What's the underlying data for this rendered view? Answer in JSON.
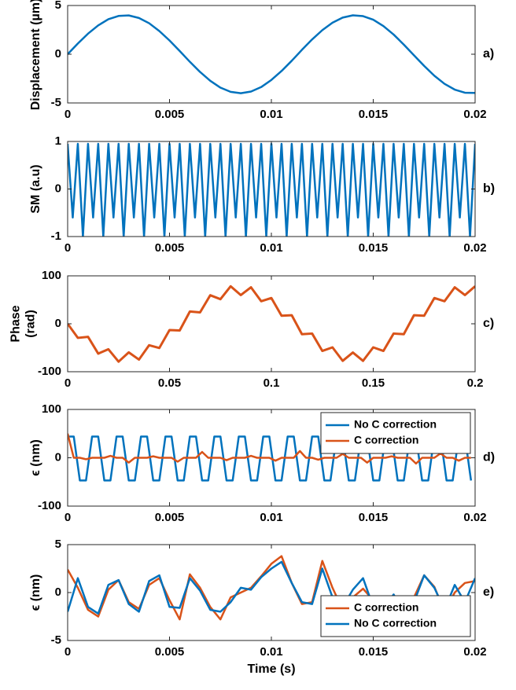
{
  "chart_data": [
    {
      "type": "line",
      "ylabel": "Displacement (µm)",
      "panel_label": "a)",
      "color": "#0072bd",
      "x": [
        0,
        0.0005,
        0.001,
        0.0015,
        0.002,
        0.0025,
        0.003,
        0.0035,
        0.004,
        0.0045,
        0.005,
        0.0055,
        0.006,
        0.0065,
        0.007,
        0.0075,
        0.008,
        0.0085,
        0.009,
        0.0095,
        0.01,
        0.0105,
        0.011,
        0.0115,
        0.012,
        0.0125,
        0.013,
        0.0135,
        0.014,
        0.0145,
        0.015,
        0.0155,
        0.016,
        0.0165,
        0.017,
        0.0175,
        0.018,
        0.0185,
        0.019,
        0.0195,
        0.02
      ],
      "values": [
        0,
        1.1,
        2.11,
        2.96,
        3.59,
        3.93,
        3.98,
        3.72,
        3.18,
        2.38,
        1.41,
        0.33,
        -0.78,
        -1.82,
        -2.73,
        -3.43,
        -3.86,
        -4.0,
        -3.83,
        -3.37,
        -2.64,
        -1.72,
        -0.67,
        0.45,
        1.52,
        2.47,
        3.24,
        3.76,
        3.99,
        3.91,
        3.54,
        2.89,
        2.02,
        0.99,
        -0.11,
        -1.2,
        -2.21,
        -3.04,
        -3.63,
        -3.95,
        -3.97
      ],
      "xlim": [
        0,
        0.02
      ],
      "xticks": [
        0,
        0.005,
        0.01,
        0.015,
        0.02
      ],
      "ylim": [
        -5,
        5
      ],
      "yticks": [
        -5,
        0,
        5
      ]
    },
    {
      "type": "line",
      "ylabel": "SM (a.u)",
      "panel_label": "b)",
      "color": "#0072bd",
      "x": [
        0,
        0.00025,
        0.0005,
        0.00075,
        0.001,
        0.00125,
        0.0015,
        0.00175,
        0.002,
        0.00225,
        0.0025,
        0.00275,
        0.003,
        0.00325,
        0.0035,
        0.00375,
        0.004,
        0.00425,
        0.0045,
        0.00475,
        0.005,
        0.00525,
        0.0055,
        0.00575,
        0.006,
        0.00625,
        0.0065,
        0.00675,
        0.007,
        0.00725,
        0.0075,
        0.00775,
        0.008,
        0.00825,
        0.0085,
        0.00875,
        0.009,
        0.00925,
        0.0095,
        0.00975,
        0.01,
        0.01025,
        0.0105,
        0.01075,
        0.011,
        0.01125,
        0.0115,
        0.01175,
        0.012,
        0.01225,
        0.0125,
        0.01275,
        0.013,
        0.01325,
        0.0135,
        0.01375,
        0.014,
        0.01425,
        0.0145,
        0.01475,
        0.015,
        0.01525,
        0.0155,
        0.01575,
        0.016,
        0.01625,
        0.0165,
        0.01675,
        0.017,
        0.01725,
        0.0175,
        0.01775,
        0.018,
        0.01825,
        0.0185,
        0.01875,
        0.019,
        0.01925,
        0.0195,
        0.01975,
        0.02
      ],
      "values": [
        0.95,
        -0.6,
        0.95,
        -1,
        0.95,
        -0.6,
        0.95,
        -1,
        0.95,
        -0.6,
        0.95,
        -1,
        0.95,
        -0.6,
        0.95,
        -1,
        0.95,
        -0.6,
        0.95,
        -1,
        0.95,
        -0.6,
        0.95,
        -1,
        0.95,
        -0.6,
        0.95,
        -1,
        0.95,
        -0.6,
        0.95,
        -1,
        0.95,
        -0.6,
        0.95,
        -1,
        0.95,
        -0.6,
        0.95,
        -1,
        0.95,
        -0.6,
        0.95,
        -1,
        0.95,
        -0.6,
        0.95,
        -1,
        0.95,
        -0.6,
        0.95,
        -1,
        0.95,
        -0.6,
        0.95,
        -1,
        0.95,
        -0.6,
        0.95,
        -1,
        0.95,
        -0.6,
        0.95,
        -1,
        0.95,
        -0.6,
        0.95,
        -1,
        0.95,
        -0.6,
        0.95,
        -1,
        0.95,
        -0.6,
        0.95,
        -1,
        0.95,
        -0.6,
        0.95,
        -1,
        0.95
      ],
      "xlim": [
        0,
        0.02
      ],
      "xticks": [
        0,
        0.005,
        0.01,
        0.015,
        0.02
      ],
      "ylim": [
        -1,
        1
      ],
      "yticks": [
        -1,
        0,
        1
      ]
    },
    {
      "type": "line",
      "ylabel": [
        "Phase",
        "(rad)"
      ],
      "panel_label": "c)",
      "color": "#d95319",
      "x": [
        0,
        0.005,
        0.01,
        0.015,
        0.02,
        0.025,
        0.03,
        0.035,
        0.04,
        0.045,
        0.05,
        0.055,
        0.06,
        0.065,
        0.07,
        0.075,
        0.08,
        0.085,
        0.09,
        0.095,
        0.1,
        0.105,
        0.11,
        0.115,
        0.12,
        0.125,
        0.13,
        0.135,
        0.14,
        0.145,
        0.15,
        0.155,
        0.16,
        0.165,
        0.17,
        0.175,
        0.18,
        0.185,
        0.19,
        0.195,
        0.2
      ],
      "values": [
        0,
        -29.4,
        -27.2,
        -62.2,
        -53.1,
        -79.0,
        -59.6,
        -74.7,
        -44.7,
        -50.5,
        -13.1,
        -13.9,
        25.6,
        23.8,
        59.5,
        51.3,
        78.2,
        59.9,
        76.1,
        47.1,
        53.7,
        16.8,
        17.8,
        -21.7,
        -20.4,
        -56.6,
        -49.2,
        -77.3,
        -60,
        -77.3,
        -49.2,
        -56.6,
        -20.4,
        -21.7,
        17.8,
        16.8,
        53.7,
        47.1,
        76.1,
        59.9,
        78.2
      ],
      "xlim": [
        0,
        0.2
      ],
      "xticks": [
        0,
        0.05,
        0.1,
        0.15,
        0.2
      ],
      "ylim": [
        -100,
        100
      ],
      "yticks": [
        -100,
        0,
        100
      ]
    },
    {
      "type": "line",
      "ylabel": "ϵ (nm)",
      "panel_label": "d)",
      "legend": "northeast",
      "x": [
        0,
        0.0003,
        0.0006,
        0.0009,
        0.0012,
        0.0015,
        0.0018,
        0.0021,
        0.0024,
        0.0027,
        0.003,
        0.0033,
        0.0036,
        0.0039,
        0.0042,
        0.0045,
        0.0048,
        0.0051,
        0.0054,
        0.0057,
        0.006,
        0.0063,
        0.0066,
        0.0069,
        0.0072,
        0.0075,
        0.0078,
        0.0081,
        0.0084,
        0.0087,
        0.009,
        0.0093,
        0.0096,
        0.0099,
        0.0102,
        0.0105,
        0.0108,
        0.0111,
        0.0114,
        0.0117,
        0.012,
        0.0123,
        0.0126,
        0.0129,
        0.0132,
        0.0135,
        0.0138,
        0.0141,
        0.0144,
        0.0147,
        0.015,
        0.0153,
        0.0156,
        0.0159,
        0.0162,
        0.0165,
        0.0168,
        0.0171,
        0.0174,
        0.0177,
        0.018,
        0.0183,
        0.0186,
        0.0189,
        0.0192,
        0.0195,
        0.0198
      ],
      "series": [
        {
          "name": "No C correction",
          "color": "#0072bd",
          "values": [
            44,
            44,
            -47,
            -47,
            44,
            44,
            -47,
            -47,
            44,
            44,
            -47,
            -47,
            44,
            44,
            -47,
            -47,
            44,
            44,
            -47,
            -47,
            44,
            44,
            -47,
            -47,
            44,
            44,
            -47,
            -47,
            44,
            44,
            -47,
            -47,
            44,
            44,
            -47,
            -47,
            44,
            44,
            -47,
            -47,
            44,
            44,
            -47,
            -47,
            44,
            44,
            -47,
            -47,
            44,
            44,
            -47,
            -47,
            44,
            44,
            -47,
            -47,
            44,
            44,
            -47,
            -47,
            44,
            44,
            -47,
            -47,
            44,
            44,
            -47
          ]
        },
        {
          "name": "C correction",
          "color": "#d95319",
          "values": [
            50,
            0,
            0,
            -3,
            0,
            0,
            0,
            4,
            0,
            0,
            -10,
            0,
            0,
            0,
            3,
            0,
            0,
            0,
            -8,
            0,
            0,
            0,
            12,
            0,
            0,
            0,
            -5,
            0,
            0,
            0,
            4,
            0,
            0,
            0,
            -6,
            0,
            0,
            0,
            14,
            0,
            0,
            -4,
            0,
            0,
            0,
            8,
            0,
            0,
            0,
            -10,
            0,
            0,
            0,
            3,
            0,
            0,
            0,
            -12,
            0,
            0,
            0,
            9,
            0,
            0,
            -6,
            0,
            0
          ]
        }
      ],
      "xlim": [
        0,
        0.02
      ],
      "xticks": [
        0,
        0.005,
        0.01,
        0.015,
        0.02
      ],
      "ylim": [
        -100,
        100
      ],
      "yticks": [
        -100,
        0,
        100
      ]
    },
    {
      "type": "line",
      "ylabel": "ϵ (nm)",
      "xlabel": "Time (s)",
      "panel_label": "e)",
      "legend": "southeast",
      "x": [
        0,
        0.0005,
        0.001,
        0.0015,
        0.002,
        0.0025,
        0.003,
        0.0035,
        0.004,
        0.0045,
        0.005,
        0.0055,
        0.006,
        0.0065,
        0.007,
        0.0075,
        0.008,
        0.0085,
        0.009,
        0.0095,
        0.01,
        0.0105,
        0.011,
        0.0115,
        0.012,
        0.0125,
        0.013,
        0.0135,
        0.014,
        0.0145,
        0.015,
        0.0155,
        0.016,
        0.0165,
        0.017,
        0.0175,
        0.018,
        0.0185,
        0.019,
        0.0195,
        0.02
      ],
      "series": [
        {
          "name": "C correction",
          "color": "#d95319",
          "values": [
            2.4,
            0.5,
            -1.8,
            -2.5,
            0.3,
            1.3,
            -1.0,
            -1.7,
            0.8,
            1.5,
            -0.8,
            -2.8,
            1.9,
            0.5,
            -1.5,
            -2.8,
            -0.5,
            0.0,
            0.5,
            1.7,
            3.0,
            3.8,
            1.0,
            -1.2,
            -1.0,
            3.3,
            0.5,
            -1.8,
            -0.5,
            0.4,
            -0.8,
            -0.8,
            -2.0,
            -1.0,
            -0.5,
            1.8,
            0.6,
            -2.0,
            0.0,
            1.0,
            1.2
          ]
        },
        {
          "name": "No C correction",
          "color": "#0072bd",
          "values": [
            -2.0,
            1.5,
            -1.5,
            -2.2,
            0.8,
            1.3,
            -1.2,
            -2.0,
            1.2,
            1.8,
            -1.5,
            -1.6,
            1.5,
            0.2,
            -1.8,
            -2.0,
            -1.0,
            0.5,
            0.3,
            1.6,
            2.5,
            3.2,
            1.0,
            -1.0,
            -1.2,
            2.5,
            -0.5,
            -1.5,
            0.3,
            1.5,
            -1.5,
            -1.7,
            -0.2,
            -2.0,
            -1.0,
            1.8,
            0.5,
            -1.8,
            0.8,
            -1.0,
            1.5
          ]
        }
      ],
      "xlim": [
        0,
        0.02
      ],
      "xticks": [
        0,
        0.005,
        0.01,
        0.015,
        0.02
      ],
      "ylim": [
        -5,
        5
      ],
      "yticks": [
        -5,
        0,
        5
      ]
    }
  ]
}
